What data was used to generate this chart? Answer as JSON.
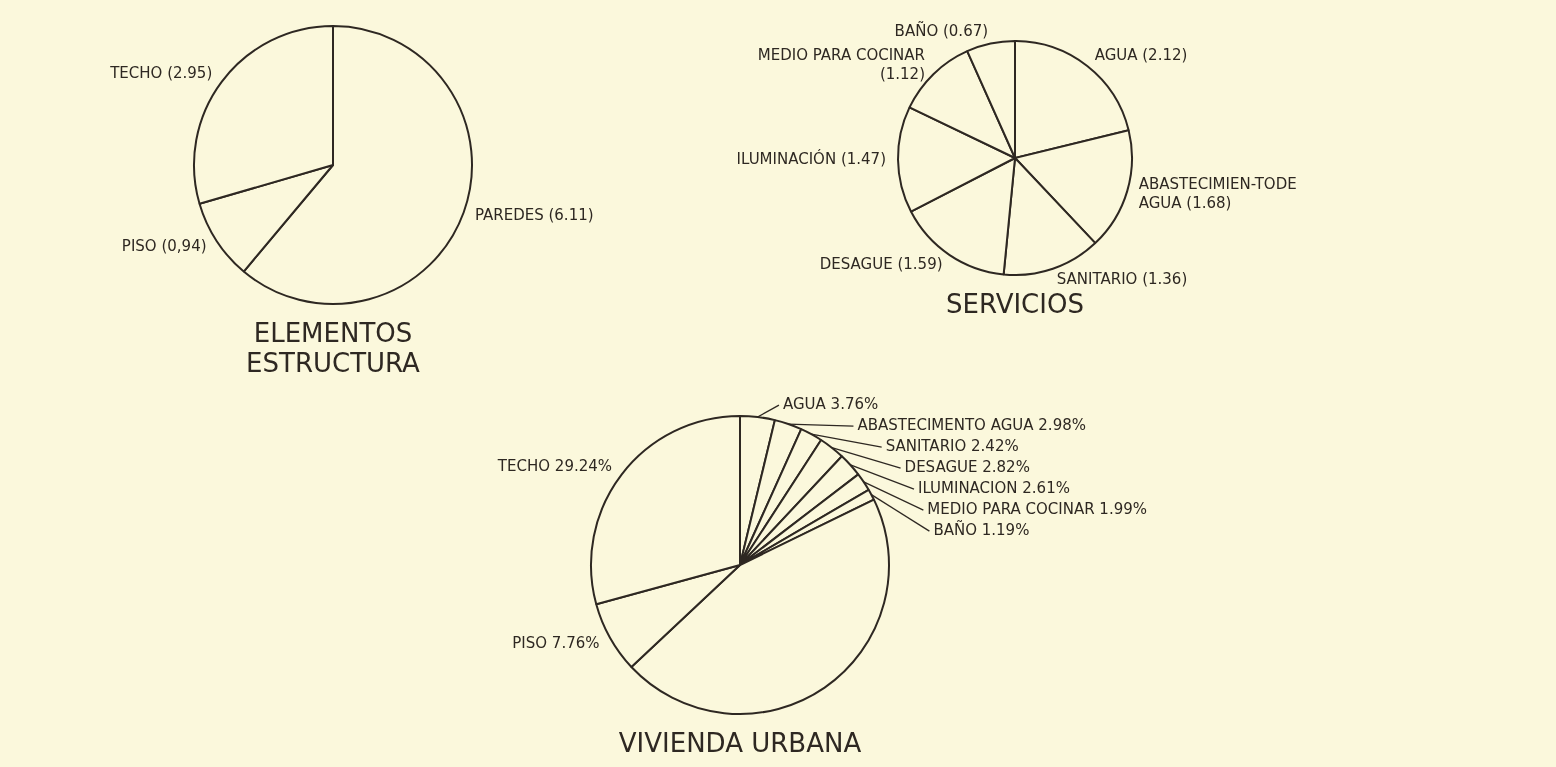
{
  "chart_data": [
    {
      "type": "pie",
      "title": "ELEMENTOS ESTRUCTURA",
      "categories": [
        "PAREDES",
        "PISO",
        "TECHO"
      ],
      "values": [
        6.11,
        0.94,
        2.95
      ],
      "value_labels": [
        "(6.11)",
        "(0,94)",
        "(2.95)"
      ],
      "colors": [
        "#fbf8dc",
        "#fbf8dc",
        "#fbf8dc"
      ]
    },
    {
      "type": "pie",
      "title": "SERVICIOS",
      "categories": [
        "AGUA",
        "ABASTECIMIEN-TODE AGUA",
        "SANITARIO",
        "DESAGUE",
        "ILUMINACIÓN",
        "MEDIO PARA COCINAR",
        "BAÑO"
      ],
      "values": [
        2.12,
        1.68,
        1.36,
        1.59,
        1.47,
        1.12,
        0.67
      ],
      "value_labels": [
        "(2.12)",
        "(1.68)",
        "(1.36)",
        "(1.59)",
        "(1.47)",
        "(1.12)",
        "(0.67)"
      ],
      "colors": [
        "#fbf8dc",
        "#fbf8dc",
        "#fbf8dc",
        "#fbf8dc",
        "#fbf8dc",
        "#fbf8dc",
        "#fbf8dc"
      ]
    },
    {
      "type": "pie",
      "title": "VIVIENDA URBANA",
      "categories": [
        "AGUA",
        "ABASTECIMENTO AGUA",
        "SANITARIO",
        "DESAGUE",
        "ILUMINACION",
        "MEDIO PARA COCINAR",
        "BAÑO",
        null,
        "PISO",
        "TECHO"
      ],
      "values": [
        3.76,
        2.98,
        2.42,
        2.82,
        2.61,
        1.99,
        1.19,
        45.23,
        7.76,
        29.24
      ],
      "value_labels": [
        "3.76%",
        "2.98%",
        "2.42%",
        "2.82%",
        "2.61%",
        "1.99%",
        "1.19%",
        null,
        "7.76%",
        "29.24%"
      ],
      "colors": [
        "#fbf8dc",
        "#fbf8dc",
        "#fbf8dc",
        "#fbf8dc",
        "#fbf8dc",
        "#fbf8dc",
        "#fbf8dc",
        "#fbf8dc",
        "#fbf8dc",
        "#fbf8dc"
      ]
    }
  ]
}
